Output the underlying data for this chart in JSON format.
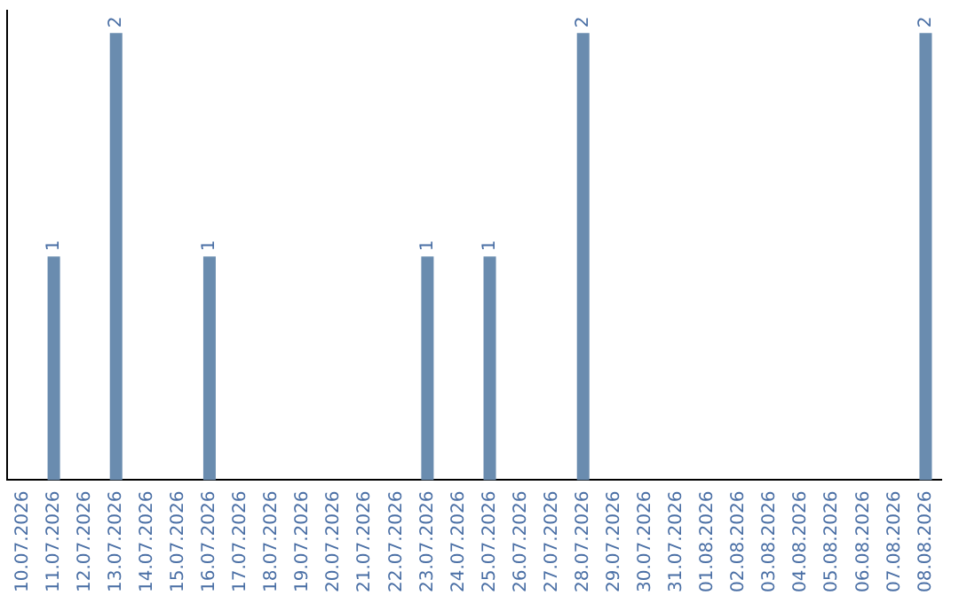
{
  "chart_data": {
    "type": "bar",
    "categories": [
      "10.07.2026",
      "11.07.2026",
      "12.07.2026",
      "13.07.2026",
      "14.07.2026",
      "15.07.2026",
      "16.07.2026",
      "17.07.2026",
      "18.07.2026",
      "19.07.2026",
      "20.07.2026",
      "21.07.2026",
      "22.07.2026",
      "23.07.2026",
      "24.07.2026",
      "25.07.2026",
      "26.07.2026",
      "27.07.2026",
      "28.07.2026",
      "29.07.2026",
      "30.07.2026",
      "31.07.2026",
      "01.08.2026",
      "02.08.2026",
      "03.08.2026",
      "04.08.2026",
      "05.08.2026",
      "06.08.2026",
      "07.08.2026",
      "08.08.2026"
    ],
    "values": [
      0,
      1,
      0,
      2,
      0,
      0,
      1,
      0,
      0,
      0,
      0,
      0,
      0,
      1,
      0,
      1,
      0,
      0,
      2,
      0,
      0,
      0,
      0,
      0,
      0,
      0,
      0,
      0,
      0,
      2
    ],
    "value_labels": [
      null,
      "1",
      null,
      "2",
      null,
      null,
      "1",
      null,
      null,
      null,
      null,
      null,
      null,
      "1",
      null,
      "1",
      null,
      null,
      "2",
      null,
      null,
      null,
      null,
      null,
      null,
      null,
      null,
      null,
      null,
      "2"
    ],
    "color": "#6a8caf",
    "ylim": [
      0,
      2.1
    ],
    "tick_labels": "x",
    "grid": false,
    "legend": false
  }
}
